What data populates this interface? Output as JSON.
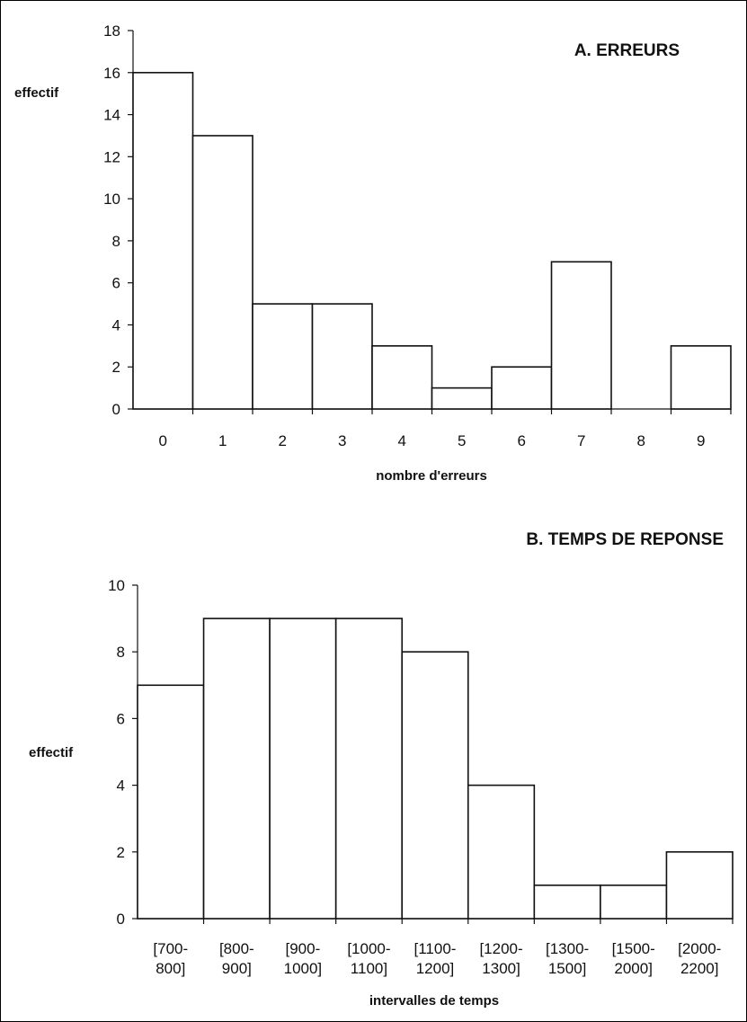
{
  "chart_data": [
    {
      "type": "bar",
      "title": "A. ERREURS",
      "xlabel": "nombre d'erreurs",
      "ylabel": "effectif",
      "ylim": [
        0,
        18
      ],
      "yticks": [
        0,
        2,
        4,
        6,
        8,
        10,
        12,
        14,
        16,
        18
      ],
      "categories": [
        "0",
        "1",
        "2",
        "3",
        "4",
        "5",
        "6",
        "7",
        "8",
        "9"
      ],
      "values": [
        16,
        13,
        5,
        5,
        3,
        1,
        2,
        7,
        0,
        3
      ]
    },
    {
      "type": "bar",
      "title": "B. TEMPS DE REPONSE",
      "xlabel": "intervalles de temps",
      "ylabel": "effectif",
      "ylim": [
        0,
        10
      ],
      "yticks": [
        0,
        2,
        4,
        6,
        8,
        10
      ],
      "categories": [
        [
          "[700-",
          "800]"
        ],
        [
          "[800-",
          "900]"
        ],
        [
          "[900-",
          "1000]"
        ],
        [
          "[1000-",
          "1100]"
        ],
        [
          "[1100-",
          "1200]"
        ],
        [
          "[1200-",
          "1300]"
        ],
        [
          "[1300-",
          "1500]"
        ],
        [
          "[1500-",
          "2000]"
        ],
        [
          "[2000-",
          "2200]"
        ]
      ],
      "values": [
        7,
        9,
        9,
        9,
        8,
        4,
        1,
        1,
        2
      ]
    }
  ]
}
